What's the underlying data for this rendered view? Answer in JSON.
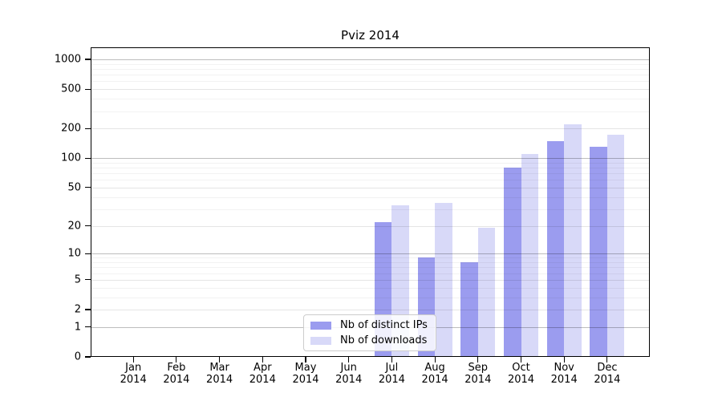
{
  "title": "Pviz 2014",
  "chart_data": {
    "type": "bar",
    "title": "Pviz 2014",
    "categories": [
      "Jan 2014",
      "Feb 2014",
      "Mar 2014",
      "Apr 2014",
      "May 2014",
      "Jun 2014",
      "Jul 2014",
      "Aug 2014",
      "Sep 2014",
      "Oct 2014",
      "Nov 2014",
      "Dec 2014"
    ],
    "series": [
      {
        "name": "Nb of distinct IPs",
        "color": "#9b9cef",
        "values": [
          0,
          0,
          0,
          0,
          0,
          0,
          22,
          9,
          8,
          80,
          150,
          130
        ]
      },
      {
        "name": "Nb of downloads",
        "color": "#d8d9f8",
        "values": [
          0,
          0,
          0,
          0,
          0,
          0,
          33,
          35,
          19,
          110,
          220,
          173
        ]
      }
    ],
    "xlabel": "",
    "ylabel": "",
    "y_axis": {
      "scale": "log1p",
      "ticks": [
        0,
        1,
        2,
        5,
        10,
        20,
        50,
        100,
        200,
        500,
        1000
      ],
      "ylim": [
        0,
        1325
      ]
    },
    "grid": {
      "major": [
        1,
        10,
        100,
        1000
      ],
      "labeled": [
        2,
        5,
        20,
        50,
        200,
        500
      ],
      "minor": [
        3,
        4,
        6,
        7,
        8,
        9,
        30,
        40,
        60,
        70,
        80,
        90,
        300,
        400,
        600,
        700,
        800,
        900
      ]
    },
    "legend": {
      "position": "bottom-center-inside"
    }
  }
}
